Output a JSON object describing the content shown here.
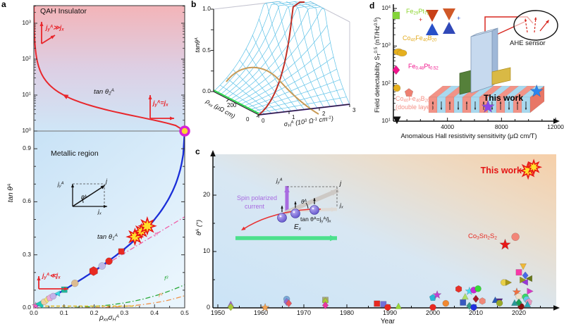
{
  "panels": {
    "a": "a",
    "b": "b",
    "c": "c",
    "d": "d"
  },
  "colors": {
    "curve_blue": "#1a2ed8",
    "curve_red": "#e8272c",
    "qah_ring": "#d822d8",
    "qah_fill": "#f8d830",
    "ref_pink": "#f060a8",
    "ref_green": "#28a838",
    "ref_orange": "#f09048",
    "ref_yellow": "#e2b820",
    "burst_fill": "#ffe02a",
    "burst_stroke": "#e81414",
    "this_work_red": "#e41414",
    "spin_purple": "#a86be0",
    "green_arrow": "#4ce08c",
    "gray_arrow": "#cdc9c5",
    "wire_blue": "#5ec2e8"
  },
  "chart_data": [
    {
      "id": "a",
      "type": "line",
      "xlabel": "ρ_{xx}σ_{H}^{A}",
      "ylabel": "tan θ^{A}",
      "x_ticks": [
        "0.0",
        "0.1",
        "0.2",
        "0.3",
        "0.4",
        "0.5"
      ],
      "y_linear_ticks": [
        "0.0",
        "0.3",
        "0.6",
        "0.9"
      ],
      "y_log_ticks": [
        "10^{0}",
        "10^{1}",
        "10^{2}",
        "10^{3}"
      ],
      "regions": {
        "upper": "QAH Insulator",
        "lower": "Metallic region"
      },
      "curves": {
        "tan1_label": "tan θ_{1}^{A}",
        "tan2_label": "tan θ_{2}^{A}",
        "ref_lines": [
          {
            "label": "f^{1}",
            "color": "#f060a8",
            "power": 1,
            "scale": 1.03
          },
          {
            "label": "f^{3}",
            "color": "#28a838",
            "power": 3,
            "scale": 1.05
          },
          {
            "label": "f^{4}",
            "color": "#f09048",
            "power": 4,
            "scale": 1.1
          }
        ]
      },
      "current_labels": {
        "much_greater": "j_{y}^{A}≫j_{x}",
        "equal": "j_{y}^{A}=j_{x}",
        "much_less": "j_{y}^{A}≪j_{x}"
      },
      "vector_diagram": {
        "jy": "j_{y}^{A}",
        "j": "j",
        "jx": "j_{x}",
        "theta": "θ^{A}"
      },
      "points": [
        {
          "x": 0.006,
          "y": 0.012,
          "shape": "star",
          "color": "#f060c0",
          "size": 8
        },
        {
          "x": 0.02,
          "y": 0.022,
          "shape": "triangle-left",
          "color": "#1ec8b4",
          "size": 12
        },
        {
          "x": 0.034,
          "y": 0.034,
          "shape": "circle",
          "color": "#ecd0a8",
          "size": 9
        },
        {
          "x": 0.044,
          "y": 0.047,
          "shape": "diamond",
          "color": "#f2e27a",
          "size": 9
        },
        {
          "x": 0.053,
          "y": 0.056,
          "shape": "pentagon",
          "color": "#eaaada",
          "size": 9
        },
        {
          "x": 0.064,
          "y": 0.066,
          "shape": "circle",
          "color": "#c4b2ea",
          "size": 9
        },
        {
          "x": 0.079,
          "y": 0.081,
          "shape": "triangle-left",
          "color": "#38d8e0",
          "size": 8
        },
        {
          "x": 0.101,
          "y": 0.103,
          "shape": "square",
          "color": "#1cb69a",
          "size": 9
        },
        {
          "x": 0.136,
          "y": 0.139,
          "shape": "circle",
          "color": "#dcbc92",
          "size": 10
        },
        {
          "x": 0.198,
          "y": 0.208,
          "shape": "hexagon",
          "color": "#e82a22",
          "size": 12
        },
        {
          "x": 0.226,
          "y": 0.237,
          "shape": "circle",
          "color": "#bcbcec",
          "size": 10
        },
        {
          "x": 0.249,
          "y": 0.264,
          "shape": "circle",
          "color": "#e82a22",
          "size": 10
        },
        {
          "x": 0.29,
          "y": 0.319,
          "shape": "square",
          "color": "#e82a22",
          "size": 9
        }
      ],
      "burst_points": [
        [
          0.335,
          0.402
        ],
        [
          0.356,
          0.433
        ],
        [
          0.376,
          0.463
        ]
      ],
      "qah_point": {
        "x": 0.5,
        "y": 1.0
      }
    },
    {
      "id": "b",
      "type": "surface",
      "zlabel": "tanθ^{A}",
      "rho_label": "ρ_{xx} (μΩ cm)",
      "sigma_label": "σ_{H}^{A} (10^{3} Ω^{-1} cm^{-1})",
      "z_ticks": [
        "0.0",
        "0.5",
        "1.0"
      ],
      "rho_ticks": [
        "0",
        "200"
      ],
      "sigma_ticks": [
        "0",
        "1",
        "2",
        "3"
      ]
    },
    {
      "id": "c",
      "type": "scatter",
      "xlabel": "Year",
      "ylabel": "θ^{A} (°)",
      "x_ticks": [
        1950,
        1960,
        1970,
        1980,
        1990,
        2000,
        2010,
        2020
      ],
      "y_ticks": [
        0,
        10,
        20
      ],
      "points": [
        [
          1953,
          0.6,
          "triangle",
          "#a060c8"
        ],
        [
          1953,
          0.15,
          "diamond",
          "#a8c838"
        ],
        [
          1961,
          0.05,
          "star",
          "#f0a050"
        ],
        [
          1966,
          1.55,
          "circle",
          "#78a8d8"
        ],
        [
          1966,
          1.05,
          "diamond",
          "#9070d0"
        ],
        [
          1966.5,
          0.8,
          "diamond",
          "#e85860"
        ],
        [
          1975,
          1.4,
          "square",
          "#a8a878"
        ],
        [
          1975,
          1.15,
          "diamond",
          "#a8c838"
        ],
        [
          1975,
          0.45,
          "diamond",
          "#e838a0"
        ],
        [
          1987,
          0.75,
          "square",
          "#e82820"
        ],
        [
          1988.5,
          0.65,
          "square",
          "#7070d8"
        ],
        [
          1989.5,
          0.1,
          "circle",
          "#e82820"
        ],
        [
          1992,
          0.25,
          "triangle",
          "#98d838"
        ],
        [
          2000,
          0.1,
          "circle",
          "#e82820"
        ],
        [
          2000,
          1.8,
          "pentagon",
          "#28b8d8"
        ],
        [
          2001,
          2.3,
          "star",
          "#c040d0"
        ],
        [
          2003,
          0.8,
          "circle",
          "#f08830"
        ],
        [
          2006,
          3.35,
          "hexagon",
          "#e83028"
        ],
        [
          2007,
          0.95,
          "square",
          "#3858c0"
        ],
        [
          2007.5,
          1.95,
          "triangle",
          "#b0e068"
        ],
        [
          2008.5,
          2.95,
          "star",
          "#48d8f0"
        ],
        [
          2008.5,
          0.35,
          "diamond",
          "#389888"
        ],
        [
          2009.5,
          0.1,
          "circle",
          "#2030e0"
        ],
        [
          2009.5,
          3.15,
          "circle",
          "#c828d8"
        ],
        [
          2010.5,
          3.4,
          "circle",
          "#38d838"
        ],
        [
          2010,
          1.6,
          "diamond",
          "#a81828"
        ],
        [
          2011.5,
          1.2,
          "hexagon",
          "#f08878"
        ],
        [
          2014.5,
          1.35,
          "triangle",
          "#2858b8"
        ],
        [
          2015.5,
          1.2,
          "triangle-down",
          "#582888"
        ],
        [
          2015.5,
          0.85,
          "circle",
          "#98a828"
        ],
        [
          2016.5,
          4.5,
          "circle",
          "#e8d048"
        ],
        [
          2017.5,
          4.5,
          "triangle-right",
          "#a89818"
        ],
        [
          2019,
          0.85,
          "triangle",
          "#289898"
        ],
        [
          2019.5,
          2.8,
          "star",
          "#f07040"
        ],
        [
          2020,
          2.05,
          "circle",
          "#f0e0c8"
        ],
        [
          2020,
          6.3,
          "square",
          "#f838a8"
        ],
        [
          2020.5,
          0.25,
          "circle",
          "#881010"
        ],
        [
          2020,
          0.95,
          "diamond",
          "#18a058"
        ],
        [
          2021,
          7.4,
          "triangle-down",
          "#f0b838"
        ],
        [
          2021.5,
          5.75,
          "diamond",
          "#4868e8"
        ],
        [
          2020.8,
          4.95,
          "triangle-right",
          "#989818"
        ],
        [
          2021.5,
          4.55,
          "triangle-left",
          "#9838d8"
        ],
        [
          2021.5,
          1.95,
          "circle",
          "#38d868"
        ],
        [
          2021.8,
          1.5,
          "circle",
          "#68c8e8"
        ],
        [
          2022.5,
          5.2,
          "triangle-left",
          "#687818"
        ],
        [
          2022.5,
          2.95,
          "triangle-right",
          "#d838c8"
        ],
        [
          2022.3,
          1.05,
          "pentagon",
          "#e898c0"
        ],
        [
          2022,
          0.6,
          "triangle",
          "#28a8b8"
        ]
      ],
      "highlight": {
        "this_work": {
          "label": "This work",
          "year": 2022.8,
          "value": 24.6
        },
        "co3sn2s2": {
          "label": "Co_{3}Sn_{2}S_{2}",
          "star": [
            2016.8,
            11.2
          ],
          "circle": [
            2019.2,
            12.6
          ]
        }
      },
      "inset": {
        "spin_line1": "Spin polarized",
        "spin_line2": "current",
        "jy": "j_{y}^{A}",
        "j": "j",
        "jx": "j_{x}",
        "theta": "θ^{A}",
        "formula": "tan θ^{A}=j_{y}^{A}/j_{x}",
        "ex": "E_{x}"
      }
    },
    {
      "id": "d",
      "type": "scatter",
      "xlabel": "Anomalous Hall resistivity sensitivity (μΩ cm/T)",
      "ylabel": "Field detectability S_{T}^{0.5} (nT/Hz^{0.5})",
      "x_ticks": [
        "4000",
        "8000",
        "12000"
      ],
      "y_ticks": [
        "10^{1}",
        "10^{2}",
        "10^{3}",
        "10^{4}"
      ],
      "points": [
        {
          "x": 200,
          "y": 6500,
          "shape": "square",
          "color": "#84d438",
          "size": 11
        },
        {
          "x": 380,
          "y": 700,
          "shape": "ellipse",
          "color": "#e6b01e",
          "size": 11
        },
        {
          "x": 640,
          "y": 650,
          "shape": "ellipse",
          "color": "#e6b01e",
          "size": 11
        },
        {
          "x": 200,
          "y": 230,
          "shape": "diamond",
          "color": "#f0148c",
          "size": 11
        },
        {
          "x": 260,
          "y": 76,
          "shape": "circle",
          "color": "#e6b01e",
          "size": 10
        },
        {
          "x": 1150,
          "y": 57,
          "shape": "pentagon",
          "color": "#ee8072",
          "size": 11
        },
        {
          "x": 7000,
          "y": 24,
          "shape": "star",
          "color": "#8c46e8",
          "size": 14
        },
        {
          "x": 10600,
          "y": 62,
          "shape": "star",
          "color": "#2a86f0",
          "size": 14
        },
        {
          "x": 260,
          "y": 11,
          "shape": "triangle-down",
          "color": "#101010",
          "size": 11
        }
      ],
      "labels": {
        "fe29pt71": {
          "text": "Fe_{29}Pt_{71}",
          "color": "#8cd42e"
        },
        "cofeb": {
          "text": "Co_{40}Fe_{40}B_{20}",
          "color": "#e2aa1e"
        },
        "fept": {
          "text": "Fe_{0.48}Pt_{0.52}",
          "color": "#f0148c"
        },
        "cofeb2": {
          "text": "Co_{40}Fe_{40}B_{20}",
          "color": "#f59086"
        },
        "cofeb2b": {
          "text": "(double layer)",
          "color": "#f59086"
        },
        "this_work": "This work",
        "sensor": "AHE sensor"
      }
    }
  ]
}
